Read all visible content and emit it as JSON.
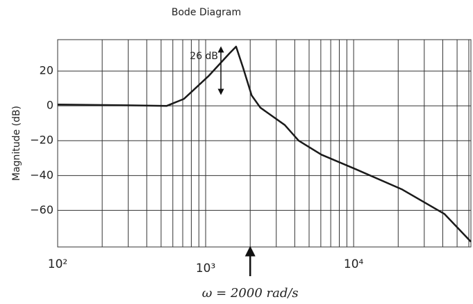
{
  "chart_data": {
    "type": "line",
    "title": "Bode Diagram",
    "y_label": "Magnitude (dB)",
    "x": [
      100,
      300,
      546,
      714,
      1043,
      1445,
      1605,
      1788,
      2045,
      2340,
      3425,
      4250,
      6050,
      10100,
      21300,
      41000,
      62000
    ],
    "values": [
      0.8,
      0.3,
      0,
      4,
      17,
      30,
      34,
      22,
      6,
      -1,
      -11,
      -20,
      -28,
      -36,
      -48,
      -62,
      -78
    ],
    "color": "#1a1a1a",
    "x_log": true,
    "xlim": [
      100,
      62000
    ],
    "ylim": [
      -81,
      38
    ],
    "xticks": [
      {
        "value": 100,
        "label": "10²"
      },
      {
        "value": 1000,
        "label": "10³"
      },
      {
        "value": 10000,
        "label": "10⁴"
      }
    ],
    "xminorticks": [
      200,
      300,
      400,
      500,
      600,
      700,
      800,
      900,
      2000,
      3000,
      4000,
      5000,
      6000,
      7000,
      8000,
      9000,
      20000,
      30000,
      40000,
      50000,
      60000
    ],
    "yticks": [
      {
        "value": 20,
        "label": "20"
      },
      {
        "value": 0,
        "label": "0"
      },
      {
        "value": -20,
        "label": "−20"
      },
      {
        "value": -40,
        "label": "−40"
      },
      {
        "value": -60,
        "label": "−60"
      }
    ],
    "grid": true,
    "annotations": [
      {
        "text": "26 dB",
        "x": 1268,
        "y": [
          8,
          34
        ]
      },
      {
        "text": "ω = 2000 rad/s",
        "x": 2000
      }
    ]
  }
}
